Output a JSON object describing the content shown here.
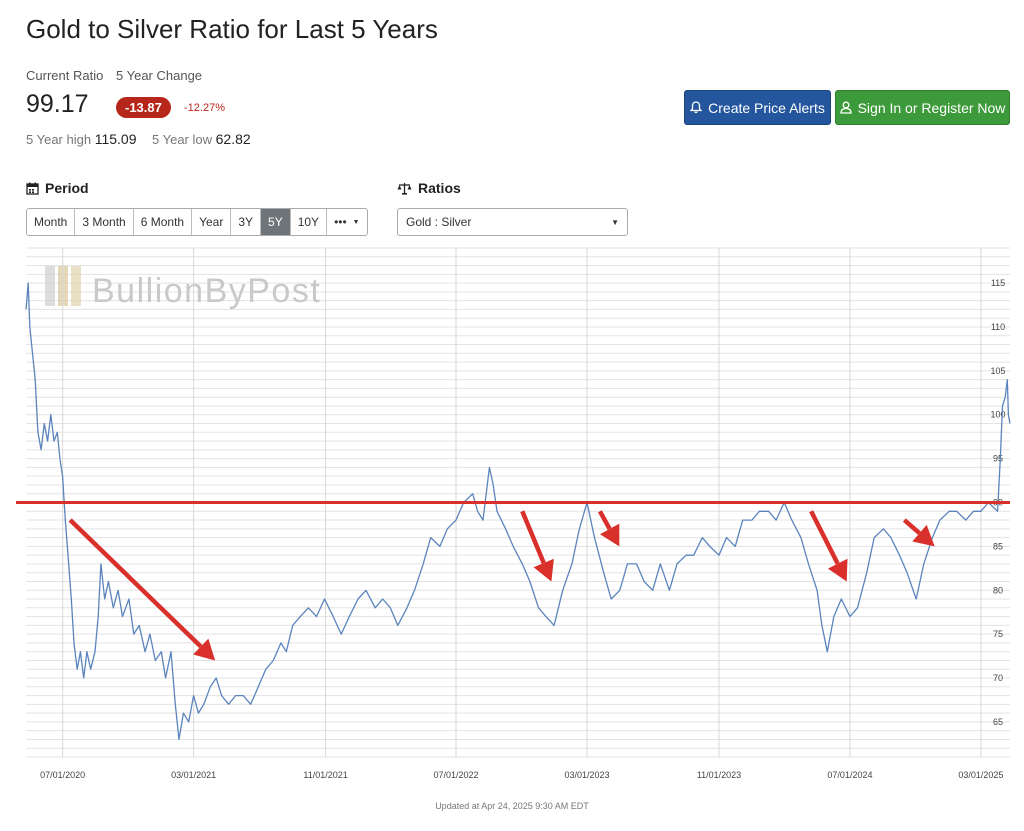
{
  "header": {
    "title": "Gold to Silver Ratio for Last 5 Years",
    "current_ratio_label": "Current Ratio",
    "change_label": "5 Year Change",
    "current_ratio": "99.17",
    "change_value": "-13.87",
    "change_percent": "-12.27%",
    "high_label": "5 Year high",
    "high_value": "115.09",
    "low_label": "5 Year low",
    "low_value": "62.82"
  },
  "buttons": {
    "alert_label": "Create Price Alerts",
    "alert_icon": "bell-icon",
    "sign_label": "Sign In or Register Now",
    "sign_icon": "user-icon",
    "alert_color": "#24569e",
    "sign_color": "#3c9a3a"
  },
  "period": {
    "label": "Period",
    "icon": "calendar-icon",
    "options": [
      "Month",
      "3 Month",
      "6 Month",
      "Year",
      "3Y",
      "5Y",
      "10Y",
      "•••"
    ],
    "active": "5Y"
  },
  "ratios": {
    "label": "Ratios",
    "icon": "scale-icon",
    "selected": "Gold : Silver"
  },
  "watermark": "BullionByPost",
  "updated": "Updated at Apr 24, 2025 9:30 AM EDT",
  "chart_data": {
    "type": "line",
    "x_tick_labels": [
      "07/01/2020",
      "03/01/2021",
      "11/01/2021",
      "07/01/2022",
      "03/01/2023",
      "11/01/2023",
      "07/01/2024",
      "03/01/2025"
    ],
    "y_tick_labels": [
      "65",
      "70",
      "75",
      "80",
      "85",
      "90",
      "95",
      "100",
      "105",
      "110",
      "115"
    ],
    "x_range": [
      "2020-04-24",
      "2025-04-24"
    ],
    "ylim": [
      61,
      119
    ],
    "grid": true,
    "series": [
      {
        "color": "#5b84bd",
        "points": [
          [
            "2020-04-24",
            112
          ],
          [
            "2020-04-28",
            115
          ],
          [
            "2020-05-01",
            110
          ],
          [
            "2020-05-06",
            107
          ],
          [
            "2020-05-11",
            104
          ],
          [
            "2020-05-16",
            98
          ],
          [
            "2020-05-22",
            96
          ],
          [
            "2020-05-28",
            99
          ],
          [
            "2020-06-03",
            97
          ],
          [
            "2020-06-09",
            100
          ],
          [
            "2020-06-15",
            97
          ],
          [
            "2020-06-21",
            98
          ],
          [
            "2020-06-26",
            95
          ],
          [
            "2020-07-01",
            93
          ],
          [
            "2020-07-06",
            88
          ],
          [
            "2020-07-11",
            84
          ],
          [
            "2020-07-17",
            79
          ],
          [
            "2020-07-22",
            74
          ],
          [
            "2020-07-28",
            71
          ],
          [
            "2020-08-03",
            73
          ],
          [
            "2020-08-09",
            70
          ],
          [
            "2020-08-15",
            73
          ],
          [
            "2020-08-22",
            71
          ],
          [
            "2020-08-30",
            73
          ],
          [
            "2020-09-05",
            77
          ],
          [
            "2020-09-10",
            83
          ],
          [
            "2020-09-17",
            79
          ],
          [
            "2020-09-24",
            81
          ],
          [
            "2020-10-03",
            78
          ],
          [
            "2020-10-12",
            80
          ],
          [
            "2020-10-20",
            77
          ],
          [
            "2020-11-01",
            79
          ],
          [
            "2020-11-10",
            75
          ],
          [
            "2020-11-20",
            76
          ],
          [
            "2020-12-01",
            73
          ],
          [
            "2020-12-10",
            75
          ],
          [
            "2020-12-20",
            72
          ],
          [
            "2020-12-31",
            73
          ],
          [
            "2021-01-08",
            70
          ],
          [
            "2021-01-18",
            73
          ],
          [
            "2021-01-26",
            67
          ],
          [
            "2021-02-02",
            63
          ],
          [
            "2021-02-10",
            66
          ],
          [
            "2021-02-20",
            65
          ],
          [
            "2021-03-01",
            68
          ],
          [
            "2021-03-10",
            66
          ],
          [
            "2021-03-20",
            67
          ],
          [
            "2021-04-01",
            69
          ],
          [
            "2021-04-12",
            70
          ],
          [
            "2021-04-22",
            68
          ],
          [
            "2021-05-05",
            67
          ],
          [
            "2021-05-18",
            68
          ],
          [
            "2021-06-01",
            68
          ],
          [
            "2021-06-15",
            67
          ],
          [
            "2021-06-29",
            69
          ],
          [
            "2021-07-13",
            71
          ],
          [
            "2021-07-27",
            72
          ],
          [
            "2021-08-10",
            74
          ],
          [
            "2021-08-20",
            73
          ],
          [
            "2021-09-01",
            76
          ],
          [
            "2021-09-15",
            77
          ],
          [
            "2021-09-30",
            78
          ],
          [
            "2021-10-15",
            77
          ],
          [
            "2021-10-30",
            79
          ],
          [
            "2021-11-15",
            77
          ],
          [
            "2021-11-30",
            75
          ],
          [
            "2021-12-15",
            77
          ],
          [
            "2021-12-31",
            79
          ],
          [
            "2022-01-15",
            80
          ],
          [
            "2022-02-01",
            78
          ],
          [
            "2022-02-15",
            79
          ],
          [
            "2022-03-01",
            78
          ],
          [
            "2022-03-15",
            76
          ],
          [
            "2022-04-01",
            78
          ],
          [
            "2022-04-15",
            80
          ],
          [
            "2022-05-01",
            83
          ],
          [
            "2022-05-15",
            86
          ],
          [
            "2022-06-01",
            85
          ],
          [
            "2022-06-15",
            87
          ],
          [
            "2022-07-01",
            88
          ],
          [
            "2022-07-15",
            90
          ],
          [
            "2022-08-01",
            91
          ],
          [
            "2022-08-10",
            89
          ],
          [
            "2022-08-20",
            88
          ],
          [
            "2022-09-01",
            94
          ],
          [
            "2022-09-08",
            92
          ],
          [
            "2022-09-15",
            89
          ],
          [
            "2022-10-01",
            87
          ],
          [
            "2022-10-15",
            85
          ],
          [
            "2022-11-01",
            83
          ],
          [
            "2022-11-15",
            81
          ],
          [
            "2022-12-01",
            78
          ],
          [
            "2022-12-15",
            77
          ],
          [
            "2022-12-30",
            76
          ],
          [
            "2023-01-15",
            80
          ],
          [
            "2023-02-01",
            83
          ],
          [
            "2023-02-15",
            87
          ],
          [
            "2023-03-01",
            90
          ],
          [
            "2023-03-15",
            86
          ],
          [
            "2023-04-01",
            82
          ],
          [
            "2023-04-15",
            79
          ],
          [
            "2023-05-01",
            80
          ],
          [
            "2023-05-15",
            83
          ],
          [
            "2023-06-01",
            83
          ],
          [
            "2023-06-15",
            81
          ],
          [
            "2023-07-01",
            80
          ],
          [
            "2023-07-15",
            83
          ],
          [
            "2023-08-01",
            80
          ],
          [
            "2023-08-15",
            83
          ],
          [
            "2023-09-01",
            84
          ],
          [
            "2023-09-15",
            84
          ],
          [
            "2023-10-01",
            86
          ],
          [
            "2023-10-15",
            85
          ],
          [
            "2023-11-01",
            84
          ],
          [
            "2023-11-15",
            86
          ],
          [
            "2023-12-01",
            85
          ],
          [
            "2023-12-15",
            88
          ],
          [
            "2024-01-01",
            88
          ],
          [
            "2024-01-15",
            89
          ],
          [
            "2024-02-01",
            89
          ],
          [
            "2024-02-15",
            88
          ],
          [
            "2024-03-01",
            90
          ],
          [
            "2024-03-15",
            88
          ],
          [
            "2024-04-01",
            86
          ],
          [
            "2024-04-15",
            83
          ],
          [
            "2024-05-01",
            80
          ],
          [
            "2024-05-10",
            76
          ],
          [
            "2024-05-20",
            73
          ],
          [
            "2024-06-01",
            77
          ],
          [
            "2024-06-15",
            79
          ],
          [
            "2024-07-01",
            77
          ],
          [
            "2024-07-15",
            78
          ],
          [
            "2024-08-01",
            82
          ],
          [
            "2024-08-15",
            86
          ],
          [
            "2024-09-01",
            87
          ],
          [
            "2024-09-15",
            86
          ],
          [
            "2024-10-01",
            84
          ],
          [
            "2024-10-15",
            82
          ],
          [
            "2024-11-01",
            79
          ],
          [
            "2024-11-15",
            83
          ],
          [
            "2024-12-01",
            86
          ],
          [
            "2024-12-15",
            88
          ],
          [
            "2025-01-01",
            89
          ],
          [
            "2025-01-15",
            89
          ],
          [
            "2025-02-01",
            88
          ],
          [
            "2025-02-15",
            89
          ],
          [
            "2025-03-01",
            89
          ],
          [
            "2025-03-15",
            90
          ],
          [
            "2025-04-01",
            89
          ],
          [
            "2025-04-06",
            95
          ],
          [
            "2025-04-10",
            101
          ],
          [
            "2025-04-15",
            102
          ],
          [
            "2025-04-19",
            104
          ],
          [
            "2025-04-21",
            100
          ],
          [
            "2025-04-24",
            99
          ]
        ]
      }
    ],
    "annotations": {
      "horizontal_line": {
        "y": 90,
        "color": "#d9302c"
      },
      "arrow_color": "#d9302c",
      "arrows": [
        {
          "from": [
            "2020-07-15",
            88
          ],
          "to": [
            "2021-04-10",
            72
          ]
        },
        {
          "from": [
            "2022-11-01",
            89
          ],
          "to": [
            "2022-12-25",
            81
          ]
        },
        {
          "from": [
            "2023-03-25",
            89
          ],
          "to": [
            "2023-04-30",
            85
          ]
        },
        {
          "from": [
            "2024-04-20",
            89
          ],
          "to": [
            "2024-06-25",
            81
          ]
        },
        {
          "from": [
            "2024-10-10",
            88
          ],
          "to": [
            "2024-12-05",
            85
          ]
        }
      ]
    }
  }
}
